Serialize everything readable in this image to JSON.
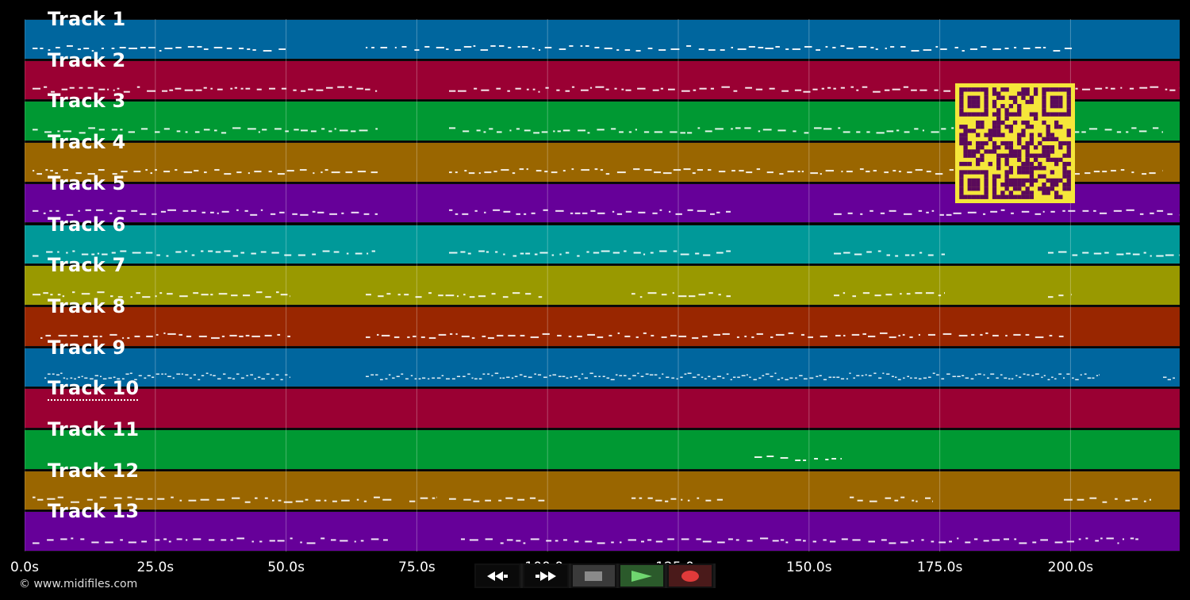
{
  "app": {
    "copyright": "© www.midifiles.com"
  },
  "colors": {
    "background": "#000000",
    "note": "#ffffff",
    "grid": "#5a5a5a",
    "qr_fg": "#f5e63a",
    "qr_bg": "#5a0a5a"
  },
  "tracks": [
    {
      "label": "Track 1",
      "color": "#00669e"
    },
    {
      "label": "Track 2",
      "color": "#9a0033"
    },
    {
      "label": "Track 3",
      "color": "#009933"
    },
    {
      "label": "Track 4",
      "color": "#9a6600"
    },
    {
      "label": "Track 5",
      "color": "#660099"
    },
    {
      "label": "Track 6",
      "color": "#009999"
    },
    {
      "label": "Track 7",
      "color": "#999900"
    },
    {
      "label": "Track 8",
      "color": "#992600"
    },
    {
      "label": "Track 9",
      "color": "#00669e"
    },
    {
      "label": "Track 10",
      "color": "#9a0033"
    },
    {
      "label": "Track 11",
      "color": "#009933"
    },
    {
      "label": "Track 12",
      "color": "#9a6600"
    },
    {
      "label": "Track 13",
      "color": "#660099"
    }
  ],
  "timeline": {
    "ticks": [
      "0.0s",
      "25.0s",
      "50.0s",
      "75.0s",
      "100.0s",
      "125.0s",
      "150.0s",
      "175.0s",
      "200.0s"
    ]
  },
  "transport": {
    "buttons": [
      {
        "name": "rewind-button",
        "icon": "rewind-icon"
      },
      {
        "name": "fast-forward-button",
        "icon": "fast-forward-icon"
      },
      {
        "name": "stop-button",
        "icon": "stop-icon"
      },
      {
        "name": "play-button",
        "icon": "play-icon"
      },
      {
        "name": "record-button",
        "icon": "record-icon"
      }
    ]
  }
}
